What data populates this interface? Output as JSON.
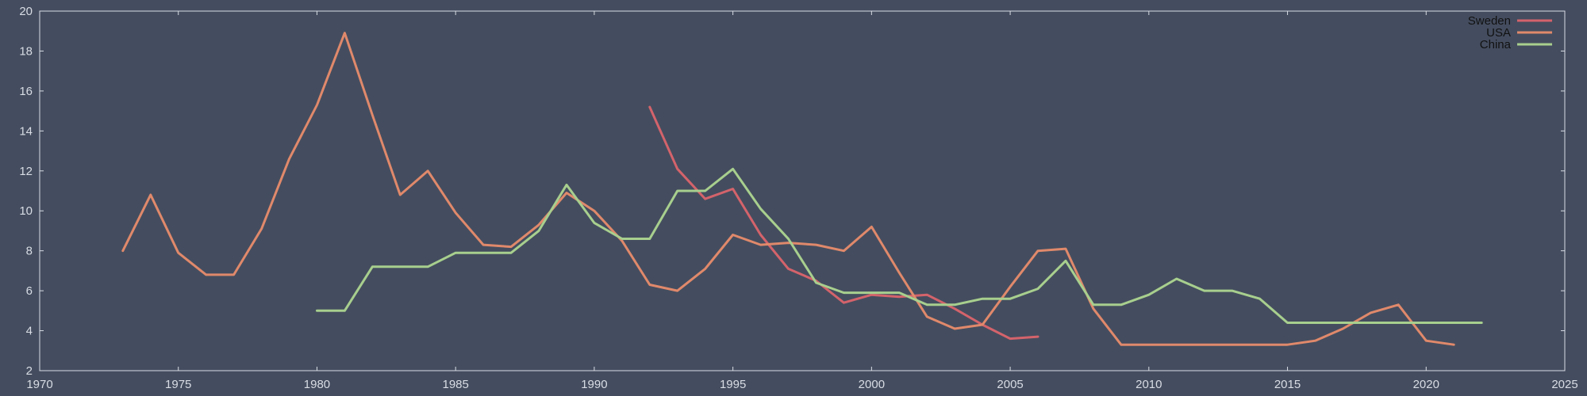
{
  "colors": {
    "background": "#444d5f",
    "axis": "#d8dce4"
  },
  "chart_data": {
    "type": "line",
    "title": "",
    "xlabel": "",
    "ylabel": "",
    "xlim": [
      1970,
      2025
    ],
    "ylim": [
      2,
      20
    ],
    "x_ticks": [
      "1970",
      "1975",
      "1980",
      "1985",
      "1990",
      "1995",
      "2000",
      "2005",
      "2010",
      "2015",
      "2020",
      "2025"
    ],
    "y_ticks": [
      "2",
      "4",
      "6",
      "8",
      "10",
      "12",
      "14",
      "16",
      "18",
      "20"
    ],
    "grid": false,
    "legend_position": "top-right",
    "series": [
      {
        "name": "Sweden",
        "color": "#d4636b",
        "points": [
          [
            1992,
            15.2
          ],
          [
            1993,
            12.1
          ],
          [
            1994,
            10.6
          ],
          [
            1995,
            11.1
          ],
          [
            1996,
            8.8
          ],
          [
            1997,
            7.1
          ],
          [
            1998,
            6.5
          ],
          [
            1999,
            5.4
          ],
          [
            2000,
            5.8
          ],
          [
            2001,
            5.7
          ],
          [
            2002,
            5.8
          ],
          [
            2003,
            5.1
          ],
          [
            2004,
            4.3
          ],
          [
            2005,
            3.6
          ],
          [
            2006,
            3.7
          ]
        ]
      },
      {
        "name": "USA",
        "color": "#e0896b",
        "points": [
          [
            1973,
            8.0
          ],
          [
            1974,
            10.8
          ],
          [
            1975,
            7.9
          ],
          [
            1976,
            6.8
          ],
          [
            1977,
            6.8
          ],
          [
            1978,
            9.1
          ],
          [
            1979,
            12.6
          ],
          [
            1980,
            15.3
          ],
          [
            1981,
            18.9
          ],
          [
            1982,
            14.8
          ],
          [
            1983,
            10.8
          ],
          [
            1984,
            12.0
          ],
          [
            1985,
            9.9
          ],
          [
            1986,
            8.3
          ],
          [
            1987,
            8.2
          ],
          [
            1988,
            9.3
          ],
          [
            1989,
            10.9
          ],
          [
            1990,
            10.0
          ],
          [
            1991,
            8.5
          ],
          [
            1992,
            6.3
          ],
          [
            1993,
            6.0
          ],
          [
            1994,
            7.1
          ],
          [
            1995,
            8.8
          ],
          [
            1996,
            8.3
          ],
          [
            1997,
            8.4
          ],
          [
            1998,
            8.3
          ],
          [
            1999,
            8.0
          ],
          [
            2000,
            9.2
          ],
          [
            2001,
            6.9
          ],
          [
            2002,
            4.7
          ],
          [
            2003,
            4.1
          ],
          [
            2004,
            4.3
          ],
          [
            2005,
            6.2
          ],
          [
            2006,
            8.0
          ],
          [
            2007,
            8.1
          ],
          [
            2008,
            5.1
          ],
          [
            2009,
            3.3
          ],
          [
            2010,
            3.3
          ],
          [
            2011,
            3.3
          ],
          [
            2012,
            3.3
          ],
          [
            2013,
            3.3
          ],
          [
            2014,
            3.3
          ],
          [
            2015,
            3.3
          ],
          [
            2016,
            3.5
          ],
          [
            2017,
            4.1
          ],
          [
            2018,
            4.9
          ],
          [
            2019,
            5.3
          ],
          [
            2020,
            3.5
          ],
          [
            2021,
            3.3
          ]
        ]
      },
      {
        "name": "China",
        "color": "#a8cf8e",
        "points": [
          [
            1980,
            5.0
          ],
          [
            1981,
            5.0
          ],
          [
            1982,
            7.2
          ],
          [
            1983,
            7.2
          ],
          [
            1984,
            7.2
          ],
          [
            1985,
            7.9
          ],
          [
            1986,
            7.9
          ],
          [
            1987,
            7.9
          ],
          [
            1988,
            9.0
          ],
          [
            1989,
            11.3
          ],
          [
            1990,
            9.4
          ],
          [
            1991,
            8.6
          ],
          [
            1992,
            8.6
          ],
          [
            1993,
            11.0
          ],
          [
            1994,
            11.0
          ],
          [
            1995,
            12.1
          ],
          [
            1996,
            10.1
          ],
          [
            1997,
            8.6
          ],
          [
            1998,
            6.4
          ],
          [
            1999,
            5.9
          ],
          [
            2000,
            5.9
          ],
          [
            2001,
            5.9
          ],
          [
            2002,
            5.3
          ],
          [
            2003,
            5.3
          ],
          [
            2004,
            5.6
          ],
          [
            2005,
            5.6
          ],
          [
            2006,
            6.1
          ],
          [
            2007,
            7.5
          ],
          [
            2008,
            5.3
          ],
          [
            2009,
            5.3
          ],
          [
            2010,
            5.8
          ],
          [
            2011,
            6.6
          ],
          [
            2012,
            6.0
          ],
          [
            2013,
            6.0
          ],
          [
            2014,
            5.6
          ],
          [
            2015,
            4.4
          ],
          [
            2016,
            4.4
          ],
          [
            2017,
            4.4
          ],
          [
            2018,
            4.4
          ],
          [
            2019,
            4.4
          ],
          [
            2020,
            4.4
          ],
          [
            2021,
            4.4
          ],
          [
            2022,
            4.4
          ]
        ]
      }
    ]
  }
}
